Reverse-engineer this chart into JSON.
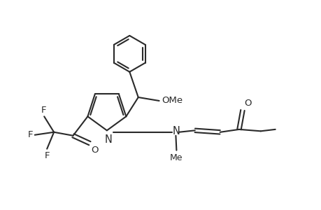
{
  "background": "#ffffff",
  "line_color": "#2a2a2a",
  "line_width": 1.5,
  "font_size": 9.5,
  "fig_width": 4.6,
  "fig_height": 3.0,
  "dpi": 100,
  "xlim": [
    0,
    9.2
  ],
  "ylim": [
    0,
    6.0
  ]
}
